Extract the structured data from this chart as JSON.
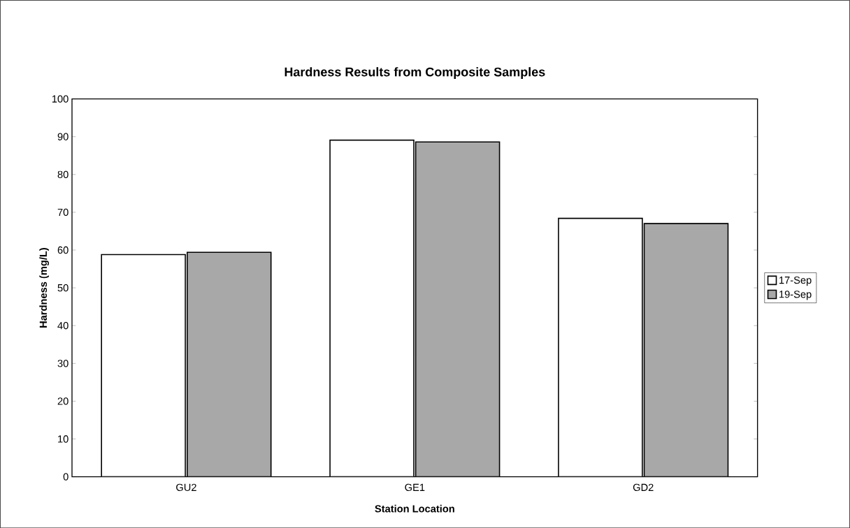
{
  "chart_data": {
    "type": "bar",
    "title": "Hardness Results from Composite Samples",
    "xlabel": "Station Location",
    "ylabel": "Hardness (mg/L)",
    "categories": [
      "GU2",
      "GE1",
      "GD2"
    ],
    "series": [
      {
        "name": "17-Sep",
        "color": "#ffffff",
        "values": [
          58.8,
          89.1,
          68.4
        ]
      },
      {
        "name": "19-Sep",
        "color": "#a8a8a8",
        "values": [
          59.4,
          88.6,
          67.0
        ]
      }
    ],
    "ylim": [
      0,
      100
    ],
    "yticks": [
      0,
      10,
      20,
      30,
      40,
      50,
      60,
      70,
      80,
      90,
      100
    ],
    "grid": false,
    "legend": "right"
  }
}
